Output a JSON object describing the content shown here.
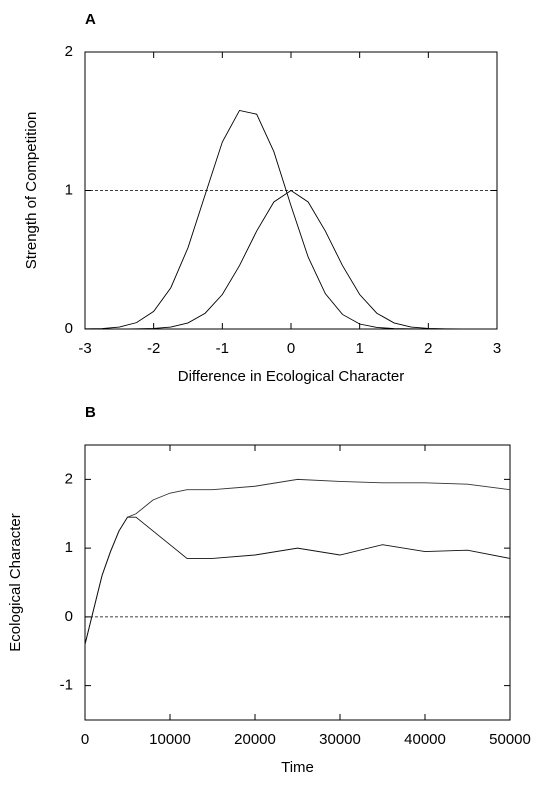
{
  "chart_data": [
    {
      "type": "line",
      "panel_label": "A",
      "x_label": "Difference in Ecological Character",
      "y_label": "Strength of Competition",
      "x": [
        -3,
        -2.75,
        -2.5,
        -2.25,
        -2,
        -1.75,
        -1.5,
        -1.25,
        -1,
        -0.75,
        -0.5,
        -0.25,
        0,
        0.25,
        0.5,
        0.75,
        1,
        1.25,
        1.5,
        1.75,
        2,
        2.25,
        2.5,
        2.75,
        3
      ],
      "series": [
        {
          "color": "#000000",
          "values": [
            0,
            0,
            0,
            0.001,
            0.004,
            0.014,
            0.044,
            0.114,
            0.249,
            0.458,
            0.707,
            0.917,
            1,
            0.917,
            0.707,
            0.458,
            0.249,
            0.114,
            0.044,
            0.014,
            0.004,
            0.001,
            0,
            0,
            0
          ]
        },
        {
          "color": "#000000",
          "values": [
            0.001,
            0.003,
            0.014,
            0.046,
            0.127,
            0.298,
            0.587,
            0.97,
            1.35,
            1.578,
            1.551,
            1.281,
            0.89,
            0.519,
            0.255,
            0.105,
            0.036,
            0.011,
            0.003,
            0.001,
            0,
            0,
            0,
            0,
            0
          ]
        }
      ],
      "hlines": [
        1
      ],
      "xlim": [
        -3,
        3
      ],
      "xticks": [
        -3,
        -2,
        -1,
        0,
        1,
        2,
        3
      ],
      "ylim": [
        0,
        2
      ],
      "yticks": [
        0,
        1,
        2
      ]
    },
    {
      "type": "line",
      "panel_label": "B",
      "x_label": "Time",
      "y_label": "Ecological Character",
      "x": [
        0,
        1000,
        2000,
        3000,
        4000,
        5000,
        6000,
        7000,
        8000,
        10000,
        12000,
        15000,
        20000,
        25000,
        30000,
        35000,
        40000,
        45000,
        50000
      ],
      "series": [
        {
          "color": "#333333",
          "values": [
            -0.4,
            0.1,
            0.6,
            0.95,
            1.25,
            1.45,
            1.5,
            1.6,
            1.7,
            1.8,
            1.85,
            1.85,
            1.9,
            2.0,
            1.97,
            1.95,
            1.95,
            1.93,
            1.85
          ]
        },
        {
          "color": "#111111",
          "values": [
            -0.4,
            0.1,
            0.6,
            0.95,
            1.25,
            1.45,
            1.45,
            1.35,
            1.25,
            1.05,
            0.85,
            0.85,
            0.9,
            1.0,
            0.9,
            1.05,
            0.95,
            0.97,
            0.85
          ]
        }
      ],
      "hlines": [
        0
      ],
      "xlim": [
        0,
        50000
      ],
      "xticks": [
        0,
        10000,
        20000,
        30000,
        40000,
        50000
      ],
      "ylim": [
        -1.5,
        2.5
      ],
      "yticks": [
        -1,
        0,
        1,
        2
      ]
    }
  ]
}
